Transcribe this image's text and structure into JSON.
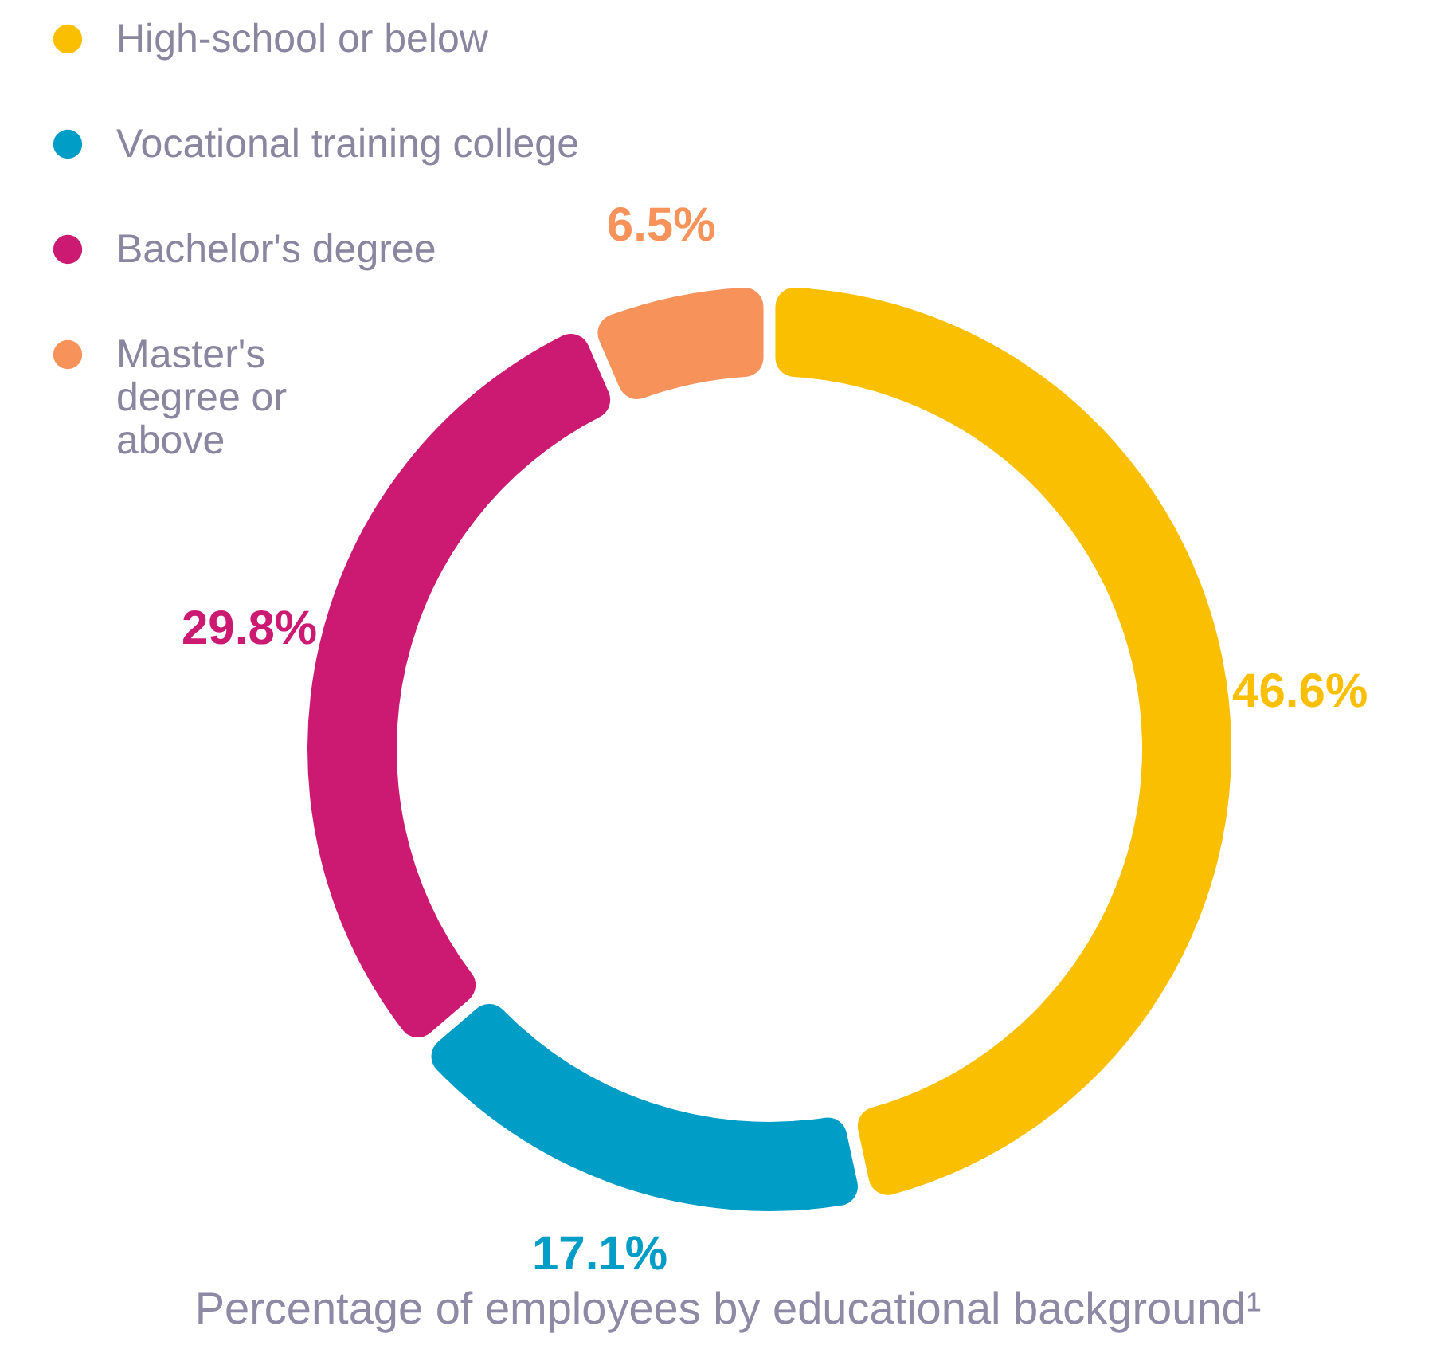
{
  "chart_data": {
    "type": "donut",
    "title": "Percentage of employees by educational background¹",
    "categories": [
      "High-school or below",
      "Vocational training college",
      "Bachelor's degree",
      "Master's degree or above"
    ],
    "values": [
      46.6,
      17.1,
      29.8,
      6.5
    ],
    "colors": [
      "#f9bf00",
      "#009dc6",
      "#cc1a73",
      "#f6925a"
    ],
    "value_labels": [
      "46.6%",
      "17.1%",
      "29.8%",
      "6.5%"
    ],
    "legend": "top left"
  }
}
